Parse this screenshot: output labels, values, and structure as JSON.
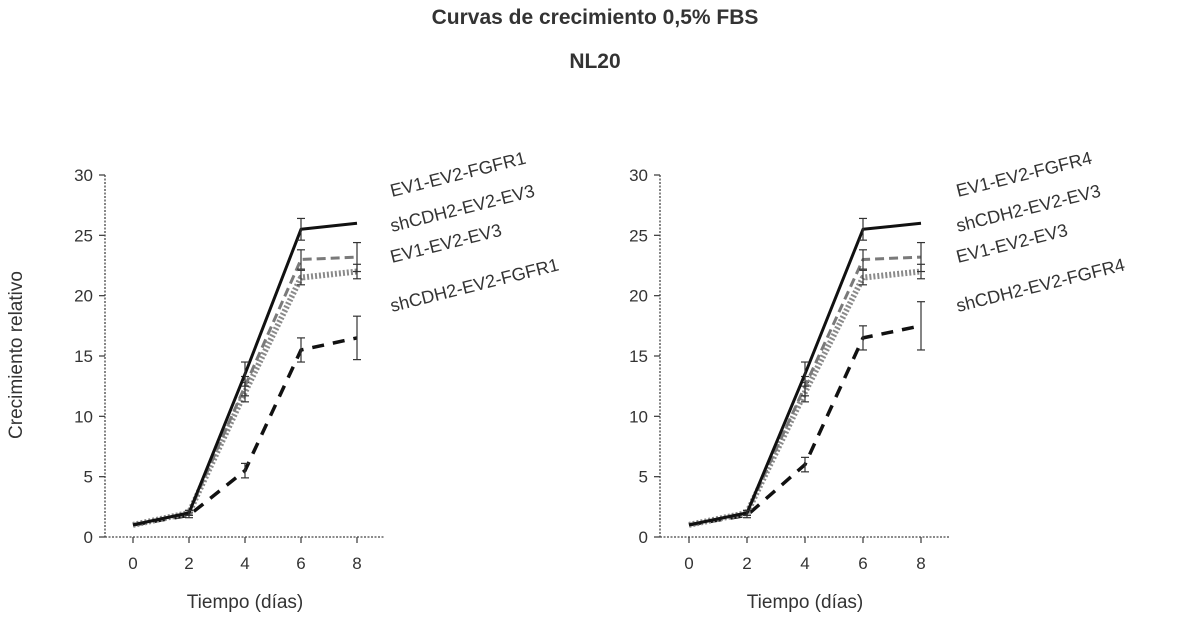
{
  "title": "Curvas de crecimiento 0,5% FBS",
  "subtitle": "NL20",
  "colors": {
    "axis": "#444444",
    "black": "#111111",
    "gray": "#8a8a8a",
    "dashed_gray": "#7a7a7a"
  },
  "chart_data": [
    {
      "type": "line",
      "xlabel": "Tiempo (días)",
      "ylabel": "Crecimiento relativo",
      "x": [
        0,
        2,
        4,
        6,
        8
      ],
      "xticks": [
        "0",
        "2",
        "4",
        "6",
        "8"
      ],
      "yticks": [
        "0",
        "5",
        "10",
        "15",
        "20",
        "25",
        "30"
      ],
      "xlim": [
        -1,
        9
      ],
      "ylim": [
        0,
        30
      ],
      "series": [
        {
          "name": "EV1-EV2-FGFR1",
          "values": [
            1,
            2,
            13.5,
            25.5,
            26
          ],
          "err": [
            0,
            0.2,
            1.0,
            0.9,
            0
          ],
          "style": "solid-black"
        },
        {
          "name": "shCDH2-EV2-EV3",
          "values": [
            1,
            2,
            12.5,
            23,
            23.2
          ],
          "err": [
            0,
            0.2,
            0.8,
            0.8,
            1.2
          ],
          "style": "dashed-gray"
        },
        {
          "name": "EV1-EV2-EV3",
          "values": [
            1,
            2,
            12,
            21.5,
            22
          ],
          "err": [
            0,
            0.2,
            0.8,
            0.6,
            0.6
          ],
          "style": "dotted-gray"
        },
        {
          "name": "shCDH2-EV2-FGFR1",
          "values": [
            1,
            1.8,
            5.5,
            15.5,
            16.5
          ],
          "err": [
            0,
            0.2,
            0.6,
            1.0,
            1.8
          ],
          "style": "dashed-black"
        }
      ]
    },
    {
      "type": "line",
      "xlabel": "Tiempo (días)",
      "ylabel": "",
      "x": [
        0,
        2,
        4,
        6,
        8
      ],
      "xticks": [
        "0",
        "2",
        "4",
        "6",
        "8"
      ],
      "yticks": [
        "0",
        "5",
        "10",
        "15",
        "20",
        "25",
        "30"
      ],
      "xlim": [
        -1,
        9
      ],
      "ylim": [
        0,
        30
      ],
      "series": [
        {
          "name": "EV1-EV2-FGFR4",
          "values": [
            1,
            2,
            13.5,
            25.5,
            26
          ],
          "err": [
            0,
            0.2,
            1.0,
            0.9,
            0
          ],
          "style": "solid-black"
        },
        {
          "name": "shCDH2-EV2-EV3",
          "values": [
            1,
            2,
            12.5,
            23,
            23.2
          ],
          "err": [
            0,
            0.2,
            0.8,
            0.8,
            1.2
          ],
          "style": "dashed-gray"
        },
        {
          "name": "EV1-EV2-EV3",
          "values": [
            1,
            2,
            12,
            21.5,
            22
          ],
          "err": [
            0,
            0.2,
            0.8,
            0.6,
            0.6
          ],
          "style": "dotted-gray"
        },
        {
          "name": "shCDH2-EV2-FGFR4",
          "values": [
            1,
            1.8,
            6,
            16.5,
            17.5
          ],
          "err": [
            0,
            0.2,
            0.6,
            1.0,
            2.0
          ],
          "style": "dashed-black"
        }
      ]
    }
  ]
}
